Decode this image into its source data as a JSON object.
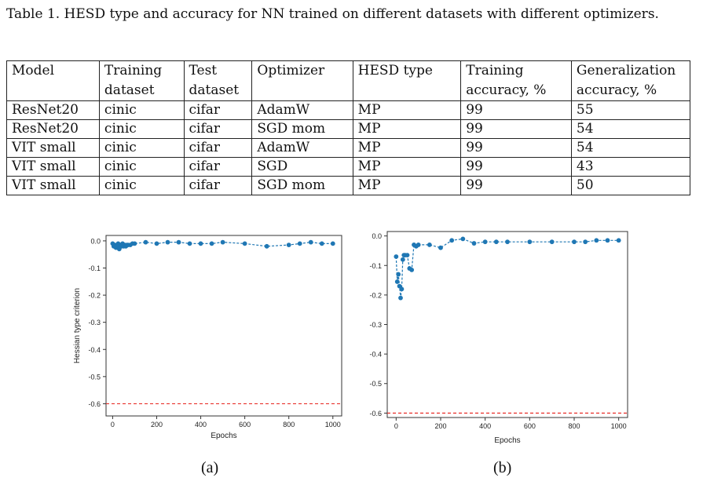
{
  "caption": "Table 1. HESD type and accuracy for NN trained on different datasets with different optimizers.",
  "table": {
    "headers": [
      [
        "Model",
        ""
      ],
      [
        "Training",
        "dataset"
      ],
      [
        "Test",
        "dataset"
      ],
      [
        "Optimizer",
        ""
      ],
      [
        "HESD type",
        ""
      ],
      [
        "Training",
        "accuracy, %"
      ],
      [
        "Generalization",
        "accuracy, %"
      ]
    ],
    "rows": [
      [
        "ResNet20",
        "cinic",
        "cifar",
        "AdamW",
        "MP",
        "99",
        "55"
      ],
      [
        "ResNet20",
        "cinic",
        "cifar",
        "SGD mom",
        "MP",
        "99",
        "54"
      ],
      [
        "VIT small",
        "cinic",
        "cifar",
        "AdamW",
        "MP",
        "99",
        "54"
      ],
      [
        "VIT small",
        "cinic",
        "cifar",
        "SGD",
        "MP",
        "99",
        "43"
      ],
      [
        "VIT small",
        "cinic",
        "cifar",
        "SGD mom",
        "MP",
        "99",
        "50"
      ]
    ]
  },
  "figure_labels": [
    "(a)",
    "(b)"
  ],
  "chart_data": [
    {
      "type": "line",
      "xlabel": "Epochs",
      "ylabel": "Hessian type criterion",
      "xlim": [
        -30,
        1040
      ],
      "ylim": [
        -0.645,
        0.02
      ],
      "xticks": [
        0,
        200,
        400,
        600,
        800,
        1000
      ],
      "xtick_labels": [
        "0",
        "200",
        "400",
        "600",
        "800",
        "1000"
      ],
      "yticks": [
        0.0,
        -0.1,
        -0.2,
        -0.3,
        -0.4,
        -0.5,
        -0.6
      ],
      "ytick_labels": [
        "0.0",
        "-0.1",
        "-0.2",
        "-0.3",
        "-0.4",
        "-0.5",
        "-0.6"
      ],
      "threshold": -0.6,
      "series_color": "#1f77b4",
      "threshold_color": "#e8302a",
      "x": [
        0,
        5,
        10,
        15,
        20,
        25,
        30,
        35,
        40,
        45,
        50,
        55,
        60,
        65,
        70,
        80,
        90,
        100,
        150,
        200,
        250,
        300,
        350,
        400,
        450,
        500,
        600,
        700,
        800,
        850,
        900,
        950,
        1000
      ],
      "y": [
        -0.01,
        -0.02,
        -0.015,
        -0.025,
        -0.02,
        -0.01,
        -0.03,
        -0.015,
        -0.02,
        -0.01,
        -0.02,
        -0.015,
        -0.02,
        -0.015,
        -0.015,
        -0.015,
        -0.01,
        -0.01,
        -0.005,
        -0.01,
        -0.005,
        -0.005,
        -0.01,
        -0.01,
        -0.01,
        -0.005,
        -0.01,
        -0.02,
        -0.015,
        -0.01,
        -0.005,
        -0.01,
        -0.01
      ]
    },
    {
      "type": "line",
      "xlabel": "Epochs",
      "ylabel": "",
      "xlim": [
        -40,
        1040
      ],
      "ylim": [
        -0.615,
        0.015
      ],
      "xticks": [
        0,
        200,
        400,
        600,
        800,
        1000
      ],
      "xtick_labels": [
        "0",
        "200",
        "400",
        "600",
        "800",
        "1000"
      ],
      "yticks": [
        0.0,
        -0.1,
        -0.2,
        -0.3,
        -0.4,
        -0.5,
        -0.6
      ],
      "ytick_labels": [
        "0.0",
        "-0.1",
        "-0.2",
        "-0.3",
        "-0.4",
        "-0.5",
        "-0.6"
      ],
      "threshold": -0.6,
      "series_color": "#1f77b4",
      "threshold_color": "#e8302a",
      "x": [
        0,
        5,
        10,
        15,
        20,
        25,
        30,
        35,
        40,
        50,
        60,
        70,
        80,
        90,
        100,
        150,
        200,
        250,
        300,
        350,
        400,
        450,
        500,
        600,
        700,
        800,
        850,
        900,
        950,
        1000
      ],
      "y": [
        -0.07,
        -0.155,
        -0.13,
        -0.17,
        -0.21,
        -0.18,
        -0.08,
        -0.065,
        -0.065,
        -0.065,
        -0.11,
        -0.115,
        -0.03,
        -0.035,
        -0.03,
        -0.03,
        -0.04,
        -0.015,
        -0.01,
        -0.025,
        -0.02,
        -0.02,
        -0.02,
        -0.02,
        -0.02,
        -0.02,
        -0.02,
        -0.015,
        -0.015,
        -0.015
      ]
    }
  ]
}
